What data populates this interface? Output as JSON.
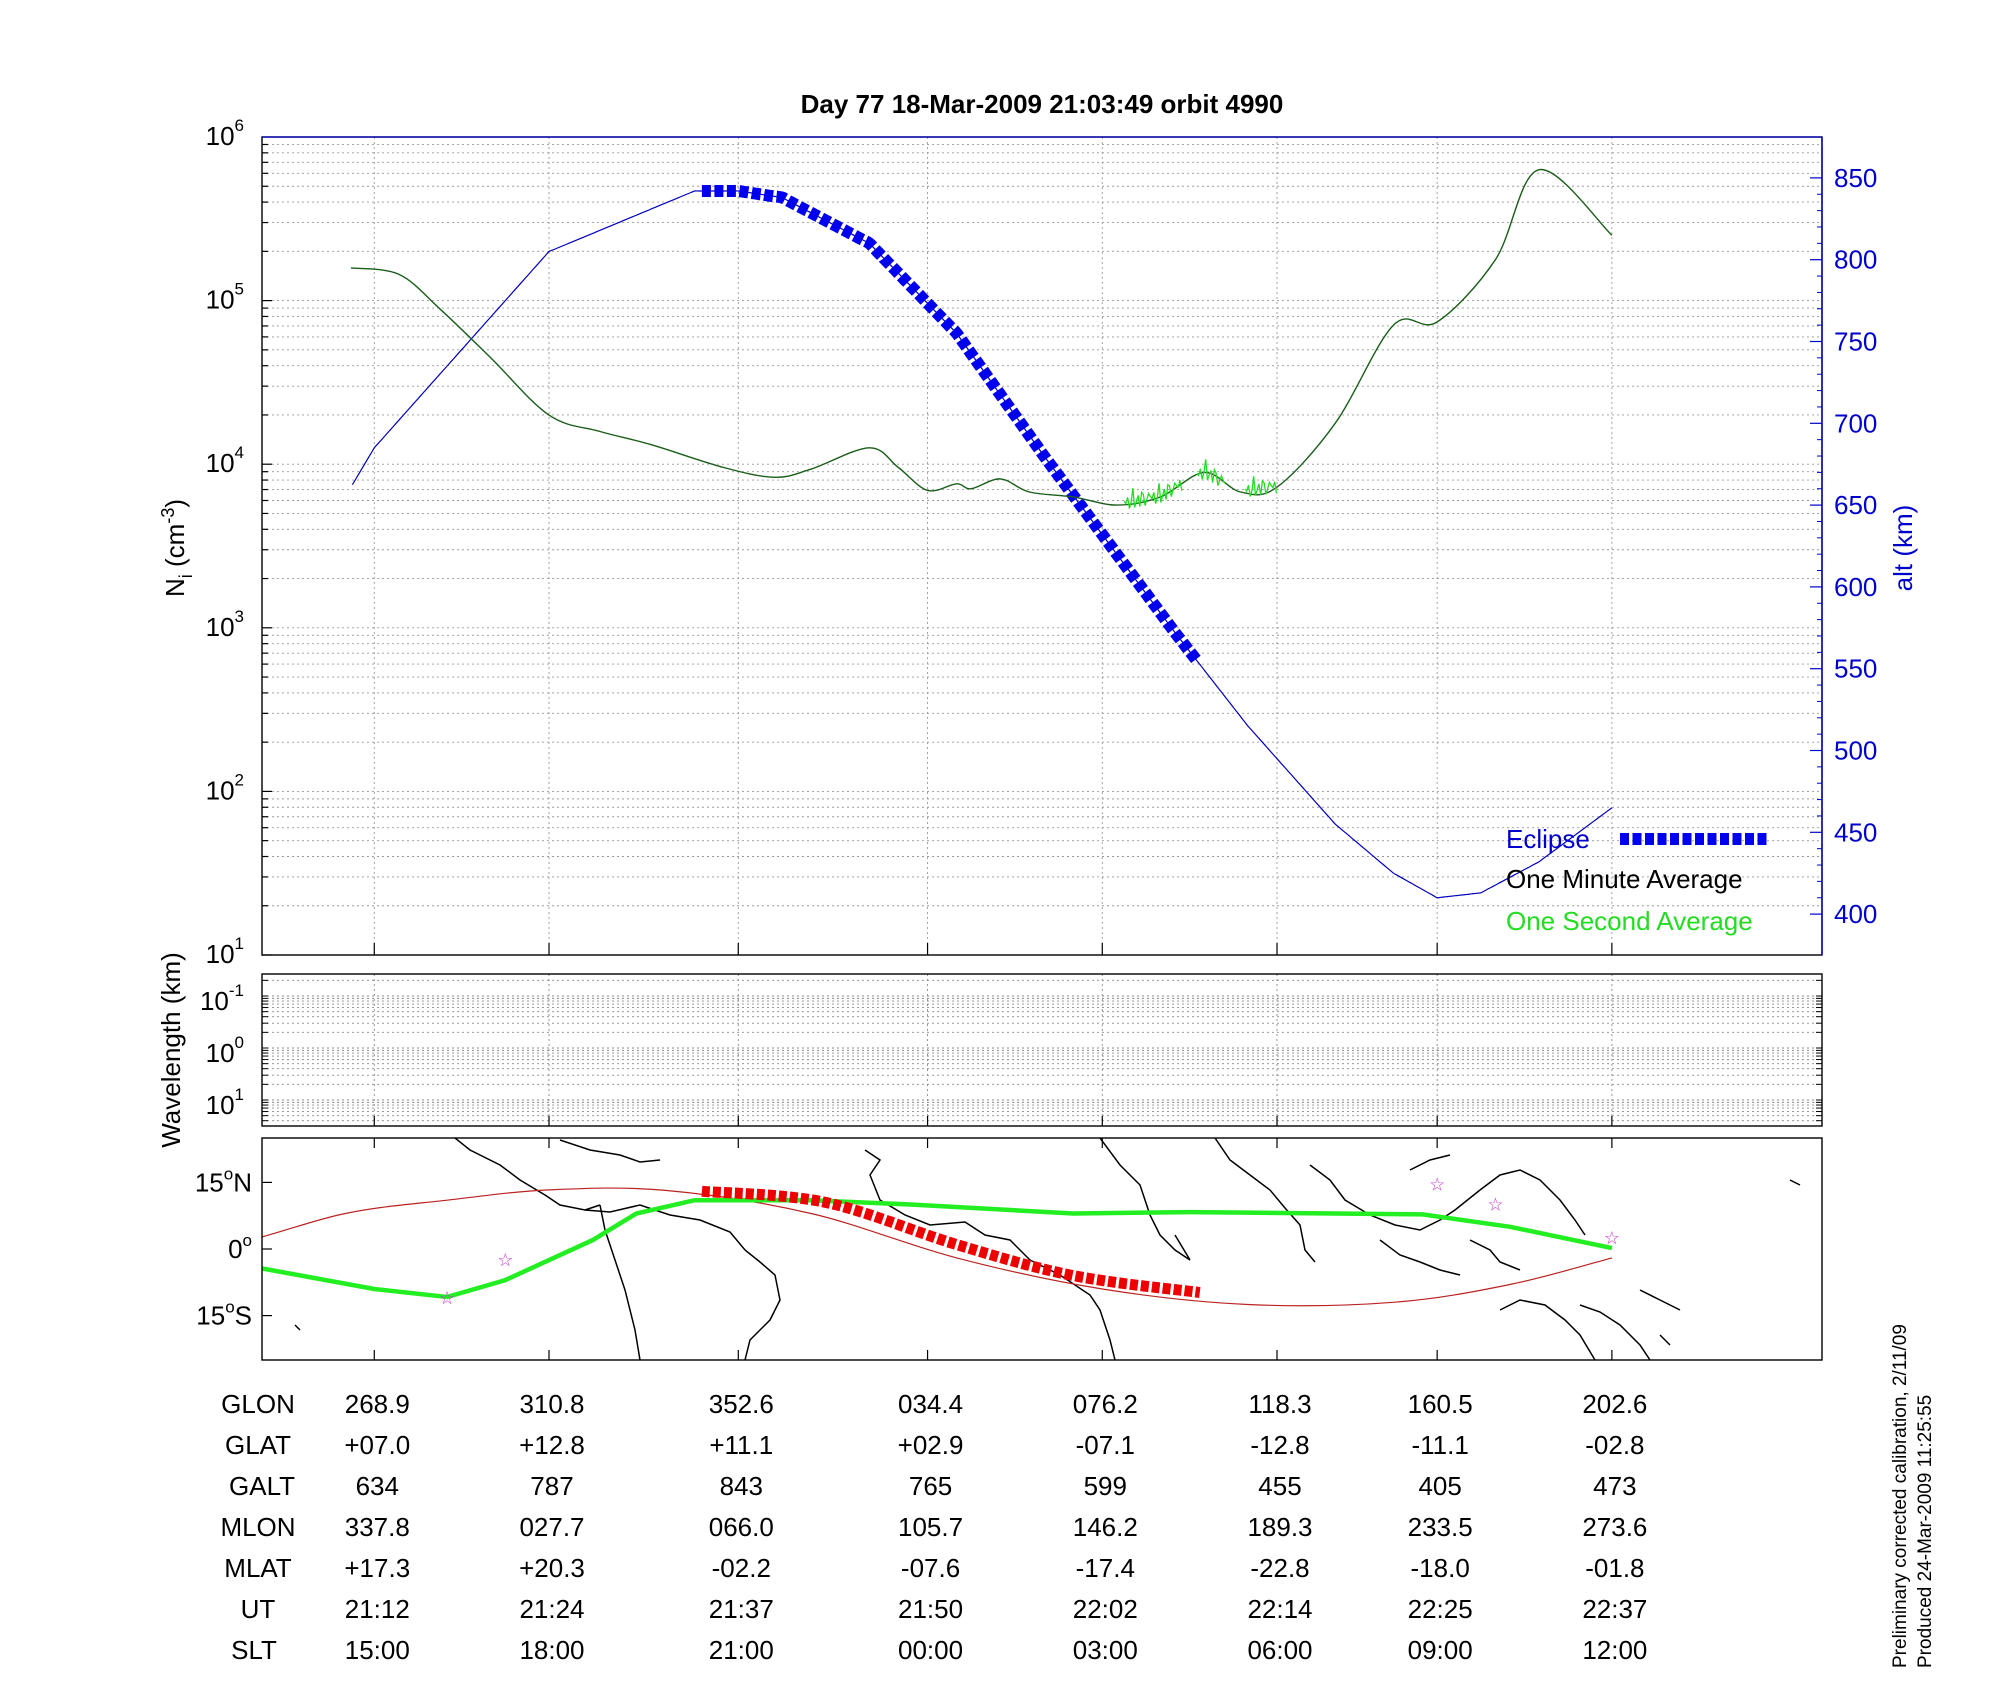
{
  "title": "Day 77  18-Mar-2009 21:03:49   orbit 4990",
  "panel_density": {
    "ylabel_main": "N",
    "ylabel_sub": "i",
    "ylabel_unit": "(cm",
    "ylabel_exp": "-3",
    "ylabel_close": ")",
    "y2label": "alt (km)",
    "yticks": [
      {
        "base": "10",
        "exp": "1",
        "v": 1
      },
      {
        "base": "10",
        "exp": "2",
        "v": 2
      },
      {
        "base": "10",
        "exp": "3",
        "v": 3
      },
      {
        "base": "10",
        "exp": "4",
        "v": 4
      },
      {
        "base": "10",
        "exp": "5",
        "v": 5
      },
      {
        "base": "10",
        "exp": "6",
        "v": 6
      }
    ],
    "ylim_log10": [
      1,
      6
    ],
    "y2ticks": [
      "400",
      "450",
      "500",
      "550",
      "600",
      "650",
      "700",
      "750",
      "800",
      "850"
    ],
    "y2lim": [
      375,
      875
    ],
    "grid": true,
    "legend_position": "bottom-right",
    "legend": {
      "eclipse": "Eclipse",
      "minute": "One Minute Average",
      "second": "One Second Average"
    }
  },
  "panel_wavelength": {
    "ylabel": "Wavelength (km)",
    "yticks": [
      {
        "base": "10",
        "exp": "-1"
      },
      {
        "base": "10",
        "exp": "0"
      },
      {
        "base": "10",
        "exp": "1"
      }
    ],
    "grid": true
  },
  "panel_map": {
    "yticks": [
      {
        "deg": "15",
        "suffix": "N",
        "lat": 15
      },
      {
        "deg": "0",
        "suffix": "",
        "lat": 0
      },
      {
        "deg": "15",
        "suffix": "S",
        "lat": -15
      }
    ],
    "ylim_lat": [
      -25,
      25
    ]
  },
  "chart_data": {
    "type": "line",
    "x_ut_minutes": [
      0,
      12,
      25,
      38,
      50,
      62,
      73,
      85
    ],
    "density_log10": {
      "name": "One Minute Average",
      "segments": [
        [
          [
            -10.2,
            5.4
          ],
          [
            -8.5,
            5.33
          ]
        ],
        [
          [
            -1.6,
            5.2
          ],
          [
            1.7,
            5.16
          ],
          [
            4.5,
            4.95
          ],
          [
            8,
            4.65
          ],
          [
            12,
            4.3
          ],
          [
            15.5,
            4.2
          ],
          [
            19,
            4.12
          ],
          [
            24,
            3.98
          ],
          [
            27.5,
            3.92
          ],
          [
            30,
            3.97
          ],
          [
            34,
            4.1
          ],
          [
            36,
            3.98
          ],
          [
            38,
            3.84
          ],
          [
            40,
            3.88
          ],
          [
            41,
            3.85
          ],
          [
            43,
            3.91
          ],
          [
            45,
            3.83
          ],
          [
            48,
            3.8
          ],
          [
            51,
            3.75
          ],
          [
            54,
            3.8
          ],
          [
            57,
            3.95
          ],
          [
            59.5,
            3.83
          ],
          [
            62,
            3.86
          ],
          [
            66,
            4.25
          ],
          [
            70,
            4.85
          ],
          [
            73,
            4.87
          ],
          [
            77,
            5.25
          ],
          [
            80,
            5.8
          ],
          [
            85,
            5.4
          ]
        ]
      ]
    },
    "one_second_noise_ut": [
      [
        51.5,
        55.5
      ],
      [
        56.5,
        58.5
      ],
      [
        59.8,
        62
      ]
    ],
    "altitude_km": {
      "name": "alt",
      "points": [
        [
          -19,
          415
        ],
        [
          -16,
          455
        ],
        [
          -13,
          505
        ],
        [
          -10,
          545
        ],
        [
          -4,
          625
        ],
        [
          0,
          685
        ],
        [
          12,
          805
        ],
        [
          22,
          842
        ],
        [
          25,
          842
        ],
        [
          28,
          838
        ],
        [
          34,
          810
        ],
        [
          40,
          755
        ],
        [
          46,
          680
        ],
        [
          50,
          632
        ],
        [
          55,
          572
        ],
        [
          60,
          515
        ],
        [
          66,
          455
        ],
        [
          70,
          425
        ],
        [
          73,
          410
        ],
        [
          76,
          413
        ],
        [
          80,
          432
        ],
        [
          85,
          465
        ]
      ],
      "data_gap_ut": [
        [
          -8.5,
          -1.6
        ]
      ]
    },
    "eclipse_ut": [
      22.5,
      56.7
    ],
    "ground_track": {
      "name": "Ground track",
      "points": [
        [
          -19,
          0
        ],
        [
          -10,
          -3
        ],
        [
          0,
          -9
        ],
        [
          5,
          -10.8
        ],
        [
          9,
          -7
        ],
        [
          15,
          2
        ],
        [
          18,
          8
        ],
        [
          22,
          11
        ],
        [
          30,
          11
        ],
        [
          37,
          10
        ],
        [
          48,
          8
        ],
        [
          56,
          8.3
        ],
        [
          60,
          8.2
        ],
        [
          72,
          7.8
        ],
        [
          78,
          5
        ],
        [
          85,
          0.2
        ]
      ]
    },
    "magnetic_equator": {
      "name": "Magnetic equator",
      "points": [
        [
          -19,
          -2
        ],
        [
          -10,
          1
        ],
        [
          -2,
          8
        ],
        [
          5,
          11
        ],
        [
          12,
          13.3
        ],
        [
          20,
          13.2
        ],
        [
          30,
          8
        ],
        [
          40,
          -2
        ],
        [
          50,
          -9
        ],
        [
          60,
          -12.5
        ],
        [
          70,
          -12
        ],
        [
          78,
          -8
        ],
        [
          85,
          -2
        ]
      ]
    },
    "eclipse_track": [
      [
        22.5,
        13
      ],
      [
        31,
        10.5
      ],
      [
        40,
        1
      ],
      [
        48,
        -6
      ],
      [
        56.7,
        -9.8
      ]
    ],
    "stars": [
      [
        5,
        -11
      ],
      [
        9,
        -2.5
      ],
      [
        73,
        14.5
      ],
      [
        77,
        10
      ],
      [
        85,
        2.5
      ]
    ],
    "axis_rows": [
      {
        "label": "GLON",
        "values": [
          "268.9",
          "310.8",
          "352.6",
          "034.4",
          "076.2",
          "118.3",
          "160.5",
          "202.6"
        ]
      },
      {
        "label": "GLAT",
        "values": [
          "+07.0",
          "+12.8",
          "+11.1",
          "+02.9",
          "-07.1",
          "-12.8",
          "-11.1",
          "-02.8"
        ]
      },
      {
        "label": "GALT",
        "values": [
          "634",
          "787",
          "843",
          "765",
          "599",
          "455",
          "405",
          "473"
        ]
      },
      {
        "label": "MLON",
        "values": [
          "337.8",
          "027.7",
          "066.0",
          "105.7",
          "146.2",
          "189.3",
          "233.5",
          "273.6"
        ]
      },
      {
        "label": "MLAT",
        "values": [
          "+17.3",
          "+20.3",
          "-02.2",
          "-07.6",
          "-17.4",
          "-22.8",
          "-18.0",
          "-01.8"
        ]
      },
      {
        "label": "UT",
        "values": [
          "21:12",
          "21:24",
          "21:37",
          "21:50",
          "22:02",
          "22:14",
          "22:25",
          "22:37"
        ]
      },
      {
        "label": "SLT",
        "values": [
          "15:00",
          "18:00",
          "21:00",
          "00:00",
          "03:00",
          "06:00",
          "09:00",
          "12:00"
        ]
      }
    ]
  },
  "footer": {
    "line1": "Preliminary corrected calibration, 2/11/09",
    "line2": "Produced 24-Mar-2009 11:25:55"
  },
  "colors": {
    "minute": "#1a5e1a",
    "second": "#22dd22",
    "altitude": "#0000bb",
    "eclipse": "#0000ee",
    "track": "#22ee22",
    "eclipse_track": "#ee0000",
    "mag_equator": "#bb2222",
    "star": "#cc33cc",
    "axis2": "#0000cc"
  }
}
